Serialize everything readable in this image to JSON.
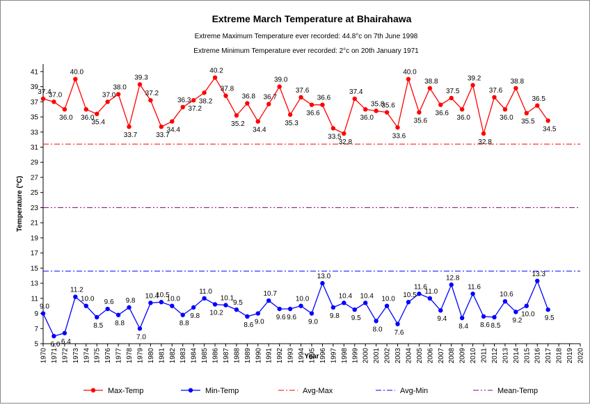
{
  "chart_data": {
    "type": "line",
    "title": "Extreme March Temperature at Bhairahawa",
    "subtitle": [
      "Extreme Maximum Temperature ever recorded: 44.8°c on 7th June 1998",
      "Extreme Minimum Temperature ever recorded: 2°c on  20th January 1971"
    ],
    "x_label": "Year",
    "y_label": "Temperature (°C)",
    "categories": [
      "1970",
      "1971",
      "1972",
      "1973",
      "1974",
      "1975",
      "1976",
      "1977",
      "1978",
      "1979",
      "1980",
      "1981",
      "1982",
      "1983",
      "1984",
      "1985",
      "1986",
      "1987",
      "1988",
      "1989",
      "1990",
      "1991",
      "1992",
      "1993",
      "1994",
      "1995",
      "1996",
      "1997",
      "1998",
      "1999",
      "2000",
      "2001",
      "2002",
      "2003",
      "2004",
      "2005",
      "2006",
      "2007",
      "2008",
      "2009",
      "2010",
      "2011",
      "2012",
      "2013",
      "2014",
      "2015",
      "2016",
      "2017",
      "2018",
      "2019",
      "2020"
    ],
    "series": [
      {
        "name": "Max-Temp",
        "color": "#ff0000",
        "values": [
          37.4,
          37.0,
          36.0,
          40.0,
          36.0,
          35.4,
          37.0,
          38.0,
          33.7,
          39.3,
          37.2,
          33.7,
          34.4,
          36.3,
          37.2,
          38.2,
          40.2,
          37.8,
          35.2,
          36.8,
          34.4,
          36.7,
          39.0,
          35.3,
          37.6,
          36.6,
          36.6,
          33.5,
          32.8,
          37.4,
          36.0,
          35.8,
          35.6,
          33.6,
          40.0,
          35.6,
          38.8,
          36.6,
          37.5,
          36.0,
          39.2,
          32.8,
          37.6,
          36.0,
          38.8,
          35.5,
          36.5,
          34.5,
          null,
          null,
          null
        ],
        "value_labels": [
          "37.4",
          "37.0",
          "36.0",
          "40.0",
          "36.0",
          "35.4",
          "37.0",
          "38.0",
          "33.7",
          "39.3",
          "37.2",
          "33.7",
          "34.4",
          "36.3",
          "37.2",
          "38.2",
          "40.2",
          "37.8",
          "35.2",
          "36.8",
          "34.4",
          "36.7",
          "39.0",
          "35.3",
          "37.6",
          "36.6",
          "36.6",
          "33.5",
          "32.8",
          "37.4",
          "36.0",
          "35.8",
          "35.6",
          "33.6",
          "40.0",
          "35.6",
          "38.8",
          "36.6",
          "37.5",
          "36.0",
          "39.2",
          "32.8",
          "37.6",
          "36.0",
          "38.8",
          "35.5",
          "36.5",
          "34.5",
          null,
          null,
          null
        ]
      },
      {
        "name": "Min-Temp",
        "color": "#0000ff",
        "values": [
          9.0,
          6.0,
          6.4,
          11.2,
          10.0,
          8.5,
          9.6,
          8.8,
          9.8,
          7.0,
          10.4,
          10.5,
          10.0,
          8.8,
          9.8,
          11.0,
          10.2,
          10.1,
          9.5,
          8.6,
          9.0,
          10.7,
          9.6,
          9.6,
          10.0,
          9.0,
          13.0,
          9.8,
          10.4,
          9.5,
          10.4,
          8.0,
          10.0,
          7.6,
          10.5,
          11.6,
          11.0,
          9.4,
          12.8,
          8.4,
          11.6,
          8.6,
          8.5,
          10.6,
          9.2,
          10.0,
          13.3,
          9.5,
          null,
          null,
          null
        ],
        "value_labels": [
          "9.0",
          "6.0",
          "6.4",
          "11.2",
          "10.0",
          "8.5",
          "9.6",
          "8.8",
          "9.8",
          "7.0",
          "10.4",
          "10.5",
          "10.0",
          "8.8",
          "9.8",
          "11.0",
          "10.2",
          "10.1",
          "9.5",
          "8.6",
          "9.0",
          "10.7",
          "9.6",
          "9.6",
          "10.0",
          "9.0",
          "13.0",
          "9.8",
          "10.4",
          "9.5",
          "10.4",
          "8.0",
          "10.0",
          "7.6",
          "10.5",
          "11.6",
          "11.0",
          "9.4",
          "12.8",
          "8.4",
          "11.6",
          "8.6",
          "8.5",
          "10.6",
          "9.2",
          "10.0",
          "13.3",
          "9.5",
          null,
          null,
          null
        ]
      }
    ],
    "reference_lines": [
      {
        "name": "Avg-Max",
        "color": "#ff0000",
        "value": 31.4
      },
      {
        "name": "Avg-Min",
        "color": "#0000ff",
        "value": 14.6
      },
      {
        "name": "Mean-Temp",
        "color": "#800080",
        "value": 23.0
      }
    ],
    "ylim": [
      5,
      42
    ],
    "yticks": [
      5,
      7,
      9,
      11,
      13,
      15,
      17,
      19,
      21,
      23,
      25,
      27,
      29,
      31,
      33,
      35,
      37,
      39,
      41
    ],
    "grid": false,
    "legend": "bottom"
  }
}
